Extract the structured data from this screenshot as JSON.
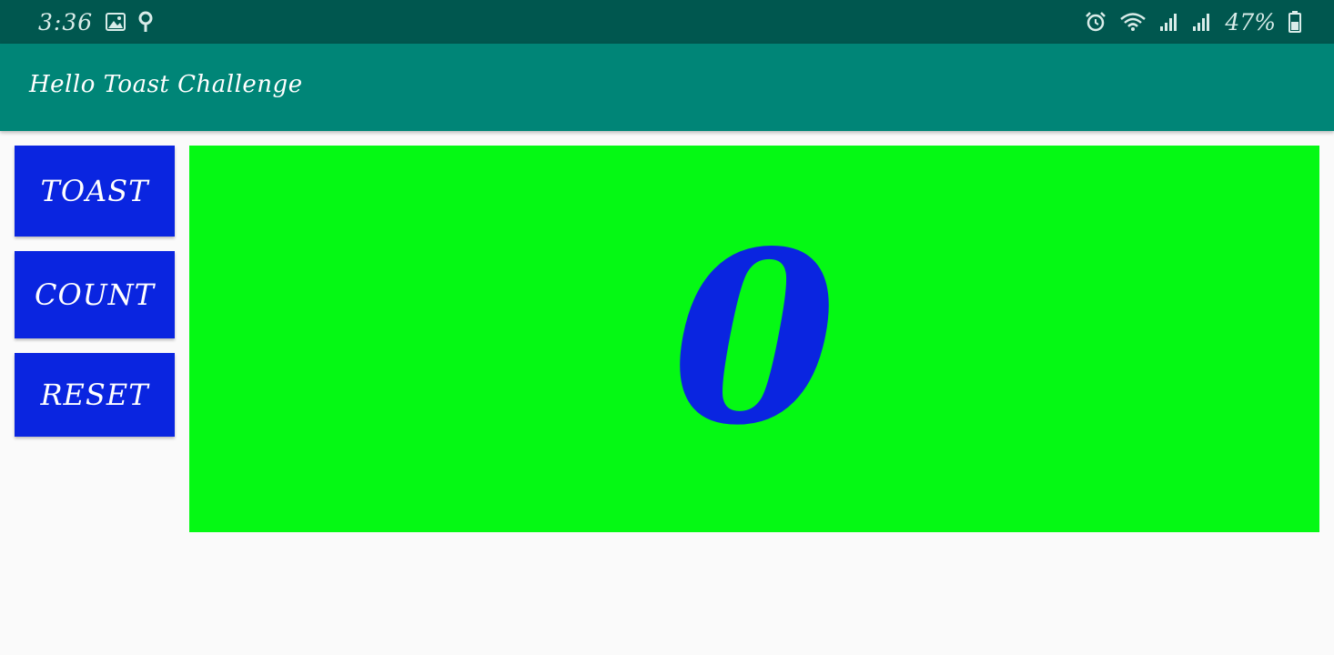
{
  "status_bar": {
    "time": "3:36",
    "battery_text": "47%",
    "icons": [
      "image-icon",
      "location-pin-icon",
      "alarm-icon",
      "wifi-icon",
      "signal-icon",
      "signal-icon",
      "battery-icon"
    ]
  },
  "app_bar": {
    "title": "Hello Toast Challenge"
  },
  "buttons": {
    "toast_label": "TOAST",
    "count_label": "COUNT",
    "reset_label": "RESET"
  },
  "counter": {
    "value": "0"
  },
  "colors": {
    "status_bar": "#00574f",
    "app_bar": "#008577",
    "button": "#0a25e0",
    "count_panel": "#05f914",
    "count_text": "#0a25e0"
  }
}
